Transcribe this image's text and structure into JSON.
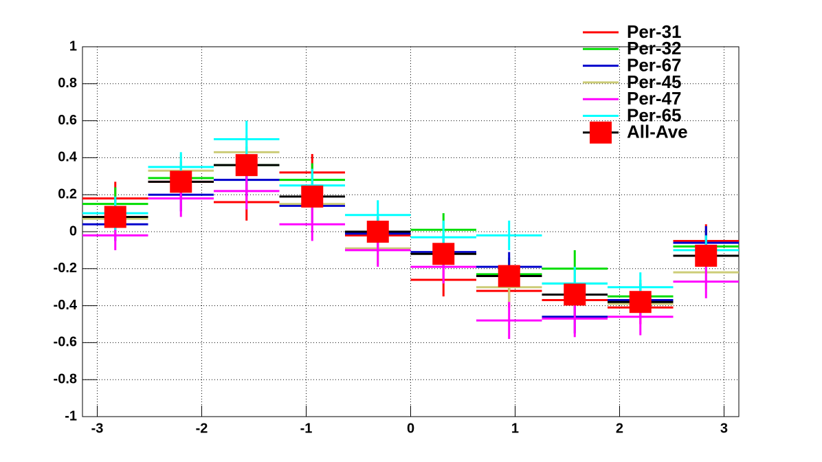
{
  "chart_data": {
    "type": "histogram",
    "bins": [
      -3.1416,
      -2.5133,
      -1.885,
      -1.2566,
      -0.6283,
      0,
      0.6283,
      1.2566,
      1.885,
      2.5133,
      3.1416
    ],
    "xlim": [
      -3.1416,
      3.1416
    ],
    "xticks": [
      -3,
      -2,
      -1,
      0,
      1,
      2,
      3
    ],
    "ylim": [
      -1,
      1
    ],
    "yticks": [
      -1,
      -0.8,
      -0.6,
      -0.4,
      -0.2,
      0,
      0.2,
      0.4,
      0.6,
      0.8,
      1
    ],
    "grid": true,
    "legend": "top-right",
    "series": [
      {
        "name": "Per-31",
        "color": "#ff0000",
        "values": [
          0.18,
          0.27,
          0.16,
          0.32,
          -0.02,
          -0.26,
          -0.32,
          -0.37,
          -0.41,
          -0.05
        ],
        "errors": [
          0.09,
          0.09,
          0.1,
          0.1,
          0.09,
          0.09,
          0.09,
          0.09,
          0.09,
          0.09
        ]
      },
      {
        "name": "Per-32",
        "color": "#00dd00",
        "values": [
          0.15,
          0.29,
          0.36,
          0.28,
          -0.01,
          0.01,
          -0.23,
          -0.2,
          -0.35,
          -0.08
        ],
        "errors": [
          0.09,
          0.09,
          0.1,
          0.09,
          0.09,
          0.09,
          0.09,
          0.1,
          0.09,
          0.09
        ]
      },
      {
        "name": "Per-67",
        "color": "#0000cc",
        "values": [
          0.04,
          0.2,
          0.28,
          0.14,
          -0.01,
          -0.11,
          -0.19,
          -0.46,
          -0.37,
          -0.06
        ],
        "errors": [
          0.09,
          0.09,
          0.09,
          0.09,
          0.09,
          0.09,
          0.08,
          0.09,
          0.09,
          0.09
        ]
      },
      {
        "name": "Per-45",
        "color": "#cccc77",
        "values": [
          0.07,
          0.33,
          0.43,
          0.15,
          -0.09,
          -0.12,
          -0.3,
          -0.28,
          -0.39,
          -0.22
        ],
        "errors": [
          0.09,
          0.09,
          0.09,
          0.09,
          0.09,
          0.09,
          0.09,
          0.09,
          0.09,
          0.09
        ]
      },
      {
        "name": "Per-47",
        "color": "#ff00ff",
        "values": [
          -0.02,
          0.18,
          0.22,
          0.04,
          -0.1,
          -0.19,
          -0.48,
          -0.47,
          -0.46,
          -0.27
        ],
        "errors": [
          0.08,
          0.1,
          0.1,
          0.09,
          0.09,
          0.09,
          0.1,
          0.1,
          0.1,
          0.09
        ]
      },
      {
        "name": "Per-65",
        "color": "#00ffff",
        "values": [
          0.1,
          0.35,
          0.5,
          0.25,
          0.09,
          -0.03,
          -0.02,
          -0.28,
          -0.3,
          -0.1
        ],
        "errors": [
          0.09,
          0.08,
          0.1,
          0.09,
          0.08,
          0.09,
          0.08,
          0.09,
          0.08,
          0.08
        ]
      },
      {
        "name": "All-Ave",
        "color": "#000000",
        "marker": "square",
        "marker_color": "#ff0000",
        "values": [
          0.08,
          0.27,
          0.36,
          0.19,
          0.0,
          -0.12,
          -0.24,
          -0.34,
          -0.38,
          -0.13
        ]
      }
    ]
  }
}
